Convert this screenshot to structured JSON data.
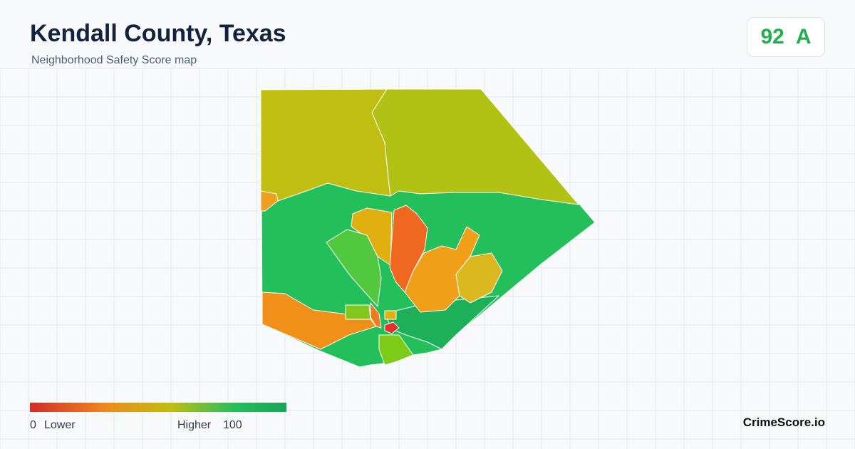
{
  "header": {
    "title": "Kendall County, Texas",
    "subtitle": "Neighborhood Safety Score map"
  },
  "score": {
    "value": 92,
    "grade": "A"
  },
  "legend": {
    "min": 0,
    "min_label": "Lower",
    "max_label": "Higher",
    "max": 100
  },
  "brand": "CrimeScore.io"
}
